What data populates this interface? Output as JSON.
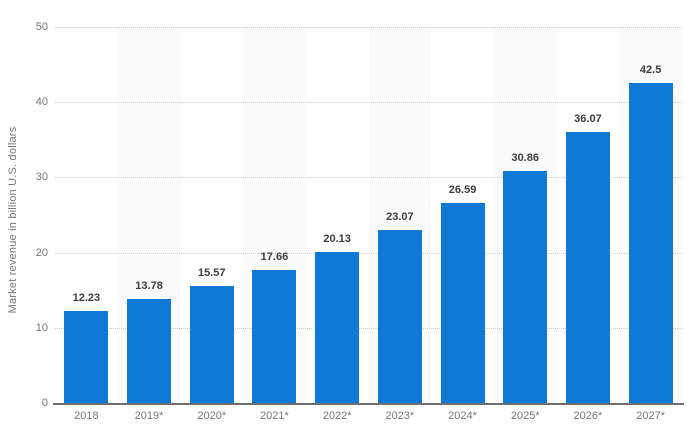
{
  "chart_data": {
    "type": "bar",
    "title": "",
    "xlabel": "",
    "ylabel": "Market revenue in billion U.S. dollars",
    "categories": [
      "2018",
      "2019*",
      "2020*",
      "2021*",
      "2022*",
      "2023*",
      "2024*",
      "2025*",
      "2026*",
      "2027*"
    ],
    "values": [
      12.23,
      13.78,
      15.57,
      17.66,
      20.13,
      23.07,
      26.59,
      30.86,
      36.07,
      42.5
    ],
    "value_labels": [
      "12.23",
      "13.78",
      "15.57",
      "17.66",
      "20.13",
      "23.07",
      "26.59",
      "30.86",
      "36.07",
      "42.5"
    ],
    "ylim": [
      0,
      50
    ],
    "yticks": [
      0,
      10,
      20,
      30,
      40,
      50
    ],
    "grid": "horizontal-dotted",
    "legend": "none",
    "bar_color": "#0e7ad5",
    "band_color": "#fafafa",
    "axis_line_color": "#6e6e6e",
    "tick_label_color": "#767676",
    "value_label_color": "#3c3c3c",
    "alternating_column_bands": "odd columns shaded"
  }
}
